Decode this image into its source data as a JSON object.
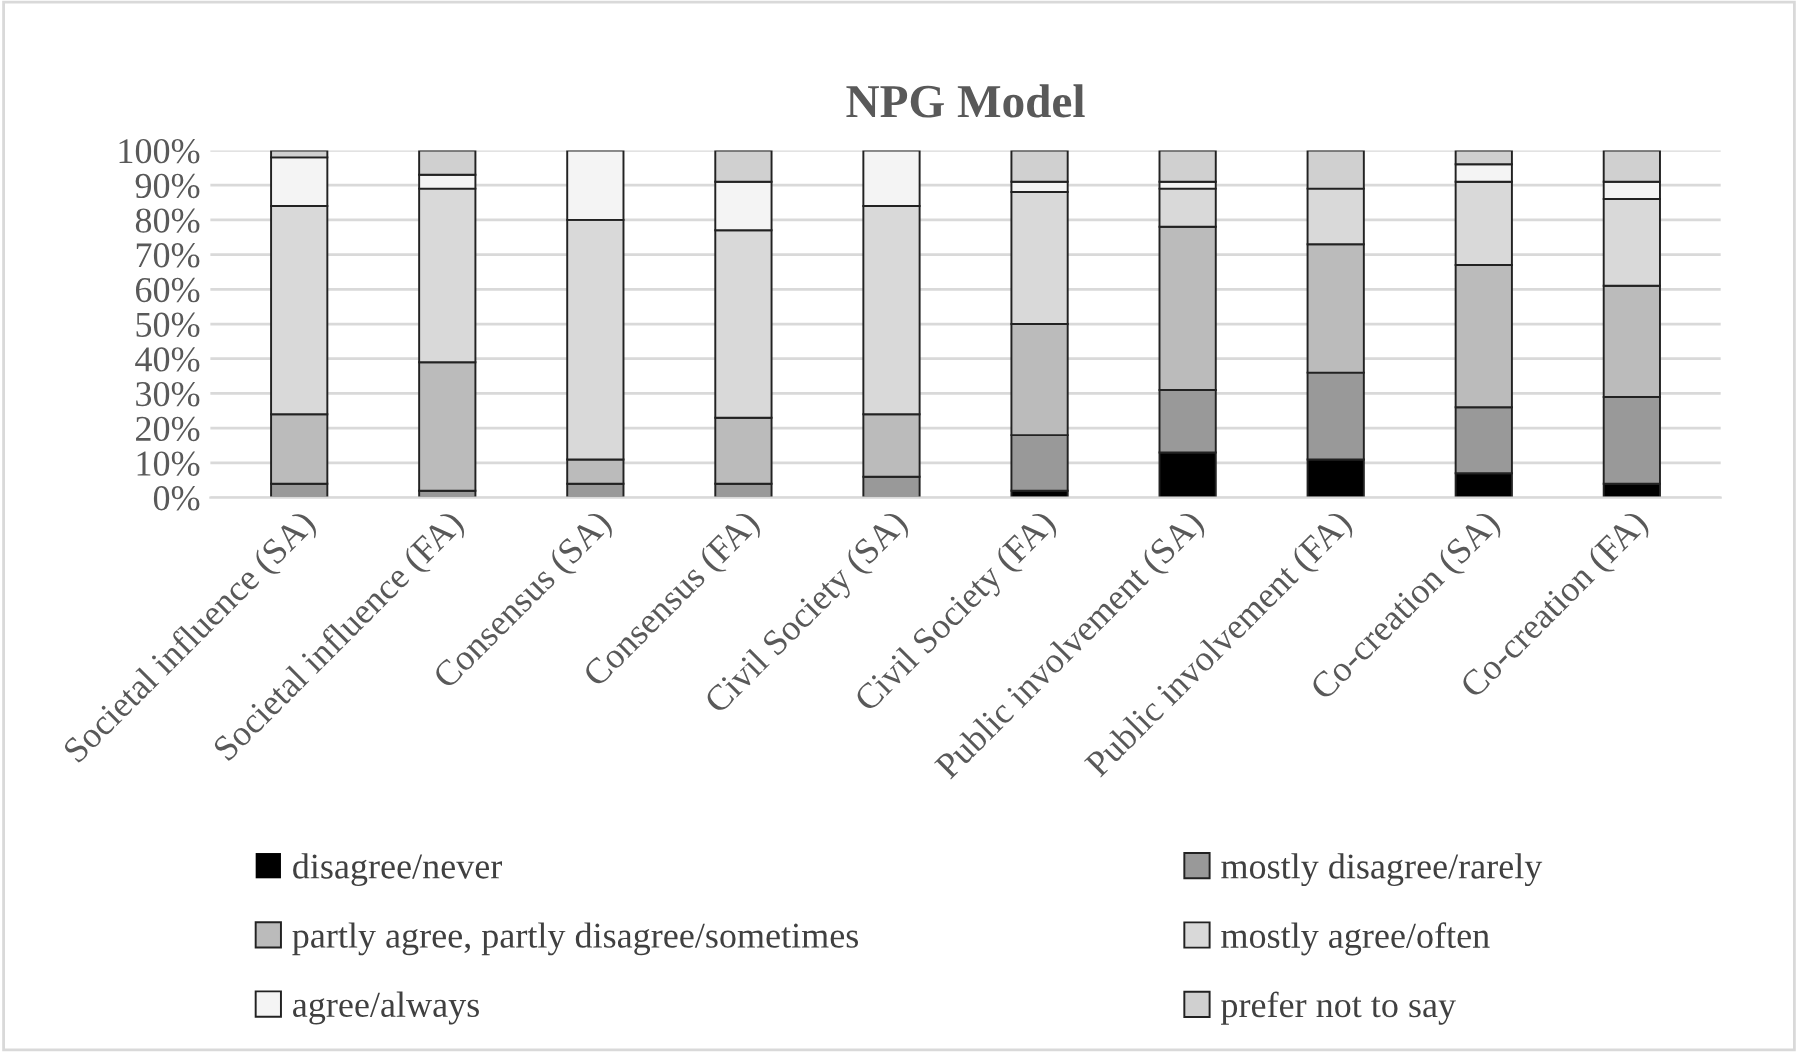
{
  "chart_data": {
    "type": "bar",
    "title": "NPG Model",
    "stacked": true,
    "categories": [
      "Societal influence (SA)",
      "Societal influence (FA)",
      "Consensus (SA)",
      "Consensus (FA)",
      "Civil Society (SA)",
      "Civil Society (FA)",
      "Public involvement (SA)",
      "Public involvement (FA)",
      "Co-creation (SA)",
      "Co-creation (FA)"
    ],
    "series": [
      {
        "name": "disagree/never",
        "color": "#000000",
        "values": [
          0,
          0,
          0,
          0,
          0,
          2,
          13,
          11,
          7,
          4
        ]
      },
      {
        "name": "mostly disagree/rarely",
        "color": "#999999",
        "values": [
          4,
          2,
          4,
          4,
          6,
          16,
          18,
          25,
          19,
          25
        ]
      },
      {
        "name": "partly agree, partly disagree/sometimes",
        "color": "#bbbbbb",
        "values": [
          20,
          37,
          7,
          19,
          18,
          32,
          47,
          37,
          41,
          32
        ]
      },
      {
        "name": "mostly agree/often",
        "color": "#d9d9d9",
        "values": [
          60,
          50,
          69,
          54,
          60,
          38,
          11,
          16,
          24,
          25
        ]
      },
      {
        "name": "agree/always",
        "color": "#f4f4f4",
        "values": [
          14,
          4,
          20,
          14,
          16,
          3,
          2,
          0,
          5,
          5
        ]
      },
      {
        "name": "prefer not to say",
        "color": "#d0d0d0",
        "values": [
          2,
          7,
          0,
          9,
          0,
          9,
          9,
          11,
          4,
          9
        ]
      }
    ],
    "ylim": [
      0,
      100
    ],
    "yticks": [
      {
        "value": 0,
        "label": "0%"
      },
      {
        "value": 10,
        "label": "10%"
      },
      {
        "value": 20,
        "label": "20%"
      },
      {
        "value": 30,
        "label": "30%"
      },
      {
        "value": 40,
        "label": "40%"
      },
      {
        "value": 50,
        "label": "50%"
      },
      {
        "value": 60,
        "label": "60%"
      },
      {
        "value": 70,
        "label": "70%"
      },
      {
        "value": 80,
        "label": "80%"
      },
      {
        "value": 90,
        "label": "90%"
      },
      {
        "value": 100,
        "label": "100%"
      }
    ],
    "grid": "y",
    "legend": "bottom"
  }
}
